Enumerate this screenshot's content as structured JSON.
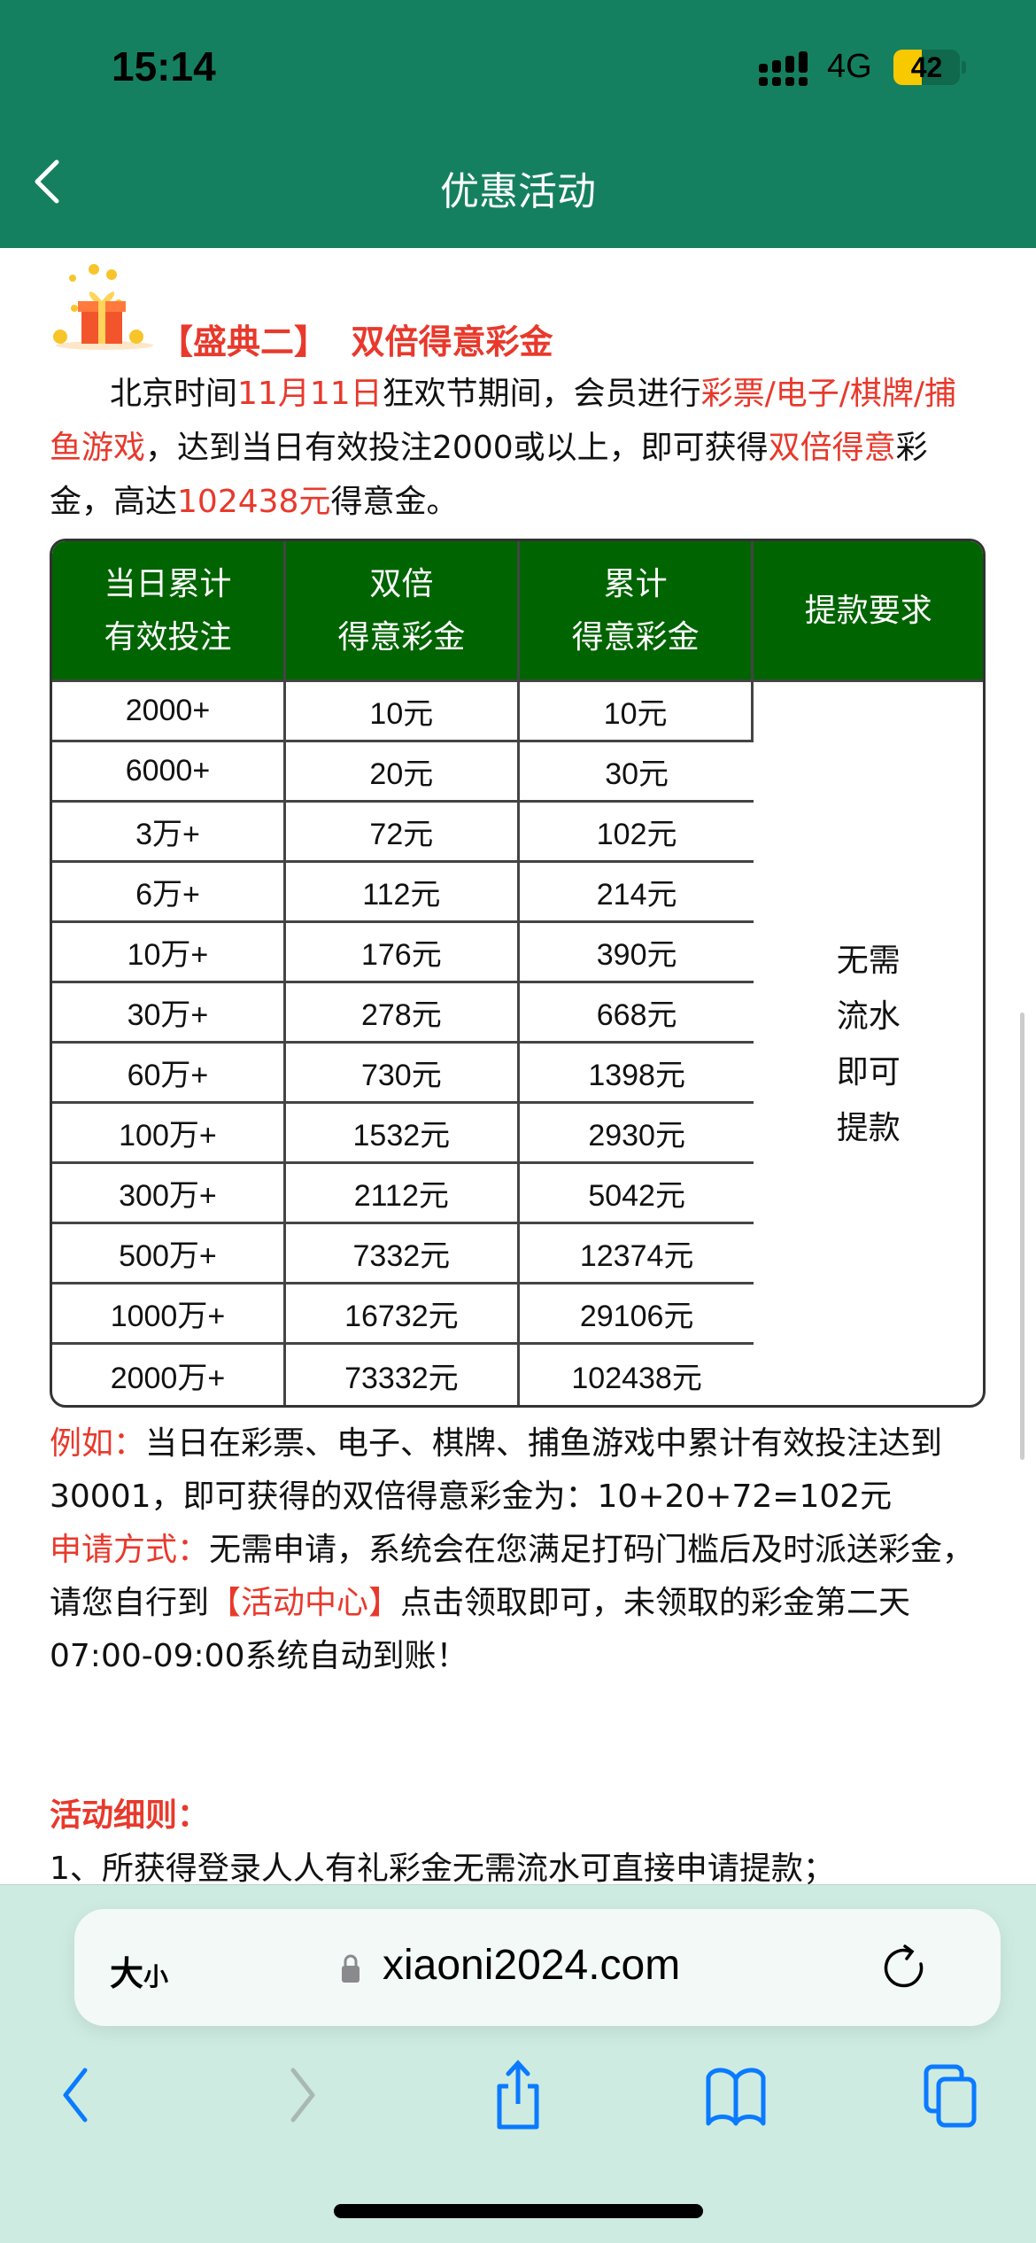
{
  "status_bar": {
    "time": "15:14",
    "network": "4G",
    "battery": "42",
    "battery_level": 0.42,
    "battery_color": "#f9c900"
  },
  "nav": {
    "title": "优惠活动",
    "back_icon": "chevron-left-icon",
    "bar_color": "#158060"
  },
  "promo": {
    "heading_bracket": "【盛典二】",
    "heading": "双倍得意彩金",
    "intro": [
      {
        "t": "北京时间",
        "red": false
      },
      {
        "t": "11月11日",
        "red": true
      },
      {
        "t": "狂欢节期间，会员进行",
        "red": false
      },
      {
        "t": "彩票/电子/棋牌/捕鱼游戏",
        "red": true
      },
      {
        "t": "，达到当日有效投注2000或以上，即可获得",
        "red": false
      },
      {
        "t": "双倍得意",
        "red": true
      },
      {
        "t": "彩金，高达",
        "red": false
      },
      {
        "t": "102438元",
        "red": true
      },
      {
        "t": "得意金。",
        "red": false
      }
    ]
  },
  "table": {
    "header_color": "#006400",
    "headers": [
      [
        "当日累计",
        "有效投注"
      ],
      [
        "双倍",
        "得意彩金"
      ],
      [
        "累计",
        "得意彩金"
      ],
      [
        "提款要求"
      ]
    ],
    "rows": [
      [
        "2000+",
        "10元",
        "10元"
      ],
      [
        "6000+",
        "20元",
        "30元"
      ],
      [
        "3万+",
        "72元",
        "102元"
      ],
      [
        "6万+",
        "112元",
        "214元"
      ],
      [
        "10万+",
        "176元",
        "390元"
      ],
      [
        "30万+",
        "278元",
        "668元"
      ],
      [
        "60万+",
        "730元",
        "1398元"
      ],
      [
        "100万+",
        "1532元",
        "2930元"
      ],
      [
        "300万+",
        "2112元",
        "5042元"
      ],
      [
        "500万+",
        "7332元",
        "12374元"
      ],
      [
        "1000万+",
        "16732元",
        "29106元"
      ],
      [
        "2000万+",
        "73332元",
        "102438元"
      ]
    ],
    "withdraw": [
      "无需",
      "流水",
      "即可",
      "提款"
    ]
  },
  "example": {
    "label": "例如：",
    "text": "当日在彩票、电子、棋牌、捕鱼游戏中累计有效投注达到30001，即可获得的双倍得意彩金为：10+20+72=102元"
  },
  "apply": {
    "label": "申请方式：",
    "text1": "无需申请，系统会在您满足打码门槛后及时派送彩金，请您自行到",
    "link": "【活动中心】",
    "text2": "点击领取即可，未领取的彩金第二天07:00-09:00系统自动到账！"
  },
  "rules": {
    "title": "活动细则：",
    "items": [
      "1、所获得登录人人有礼彩金无需流水可直接申请提款；"
    ]
  },
  "browser": {
    "text_size_big": "大",
    "text_size_small": "小",
    "url": "xiaoni2024.com",
    "accent": "#0a7aff"
  }
}
